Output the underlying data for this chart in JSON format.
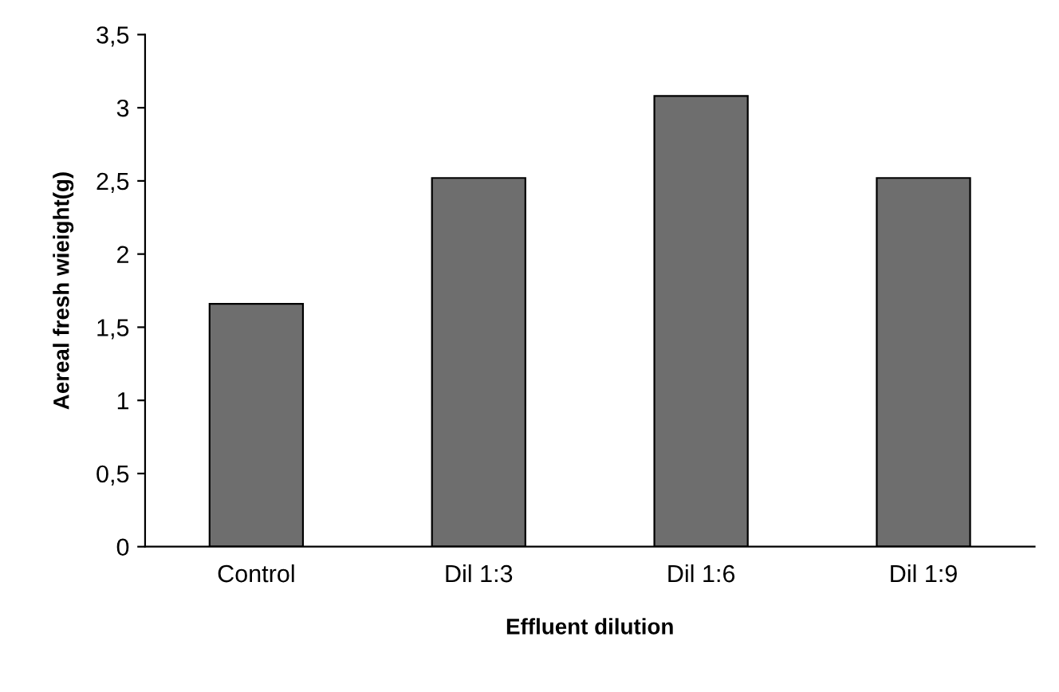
{
  "chart_data": {
    "type": "bar",
    "xlabel": "Effluent dilution",
    "ylabel": "Aereal fresh wieight(g)",
    "categories": [
      "Control",
      "Dil 1:3",
      "Dil 1:6",
      "Dil 1:9"
    ],
    "values": [
      1.66,
      2.52,
      3.08,
      2.52
    ],
    "color": "#6e6e6e",
    "ylim": [
      0,
      3.5
    ],
    "yticks": [
      0,
      {
        "value": 0.5,
        "label": "0,5"
      },
      1,
      {
        "value": 1.5,
        "label": "1,5"
      },
      2,
      {
        "value": 2.5,
        "label": "2,5"
      },
      3,
      {
        "value": 3.5,
        "label": "3,5"
      }
    ],
    "grid": false,
    "legend": false
  }
}
